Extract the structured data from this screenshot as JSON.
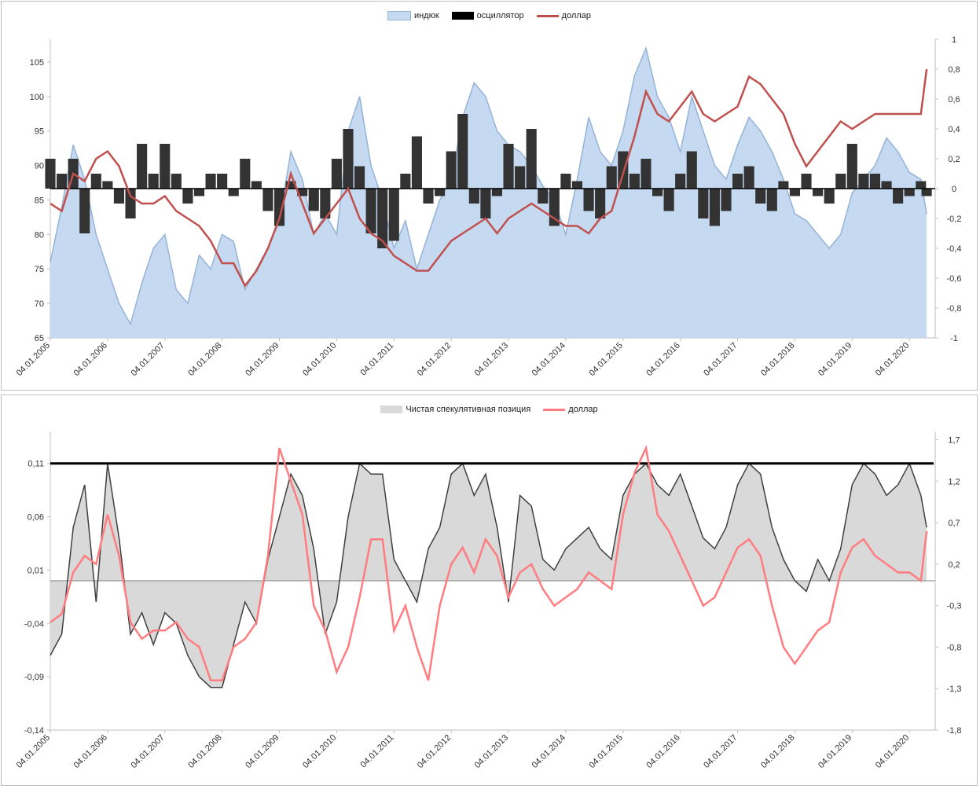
{
  "chart_data": [
    {
      "type": "area",
      "legend": {
        "position": "top",
        "items": [
          "индюк",
          "осциллятор",
          "доллар"
        ]
      },
      "series_names": {
        "index": "индюк",
        "oscillator": "осциллятор",
        "dollar": "доллар"
      },
      "colors": {
        "index_fill": "#c5d9f1",
        "index_line": "#95b3d7",
        "oscillator": "#333333",
        "dollar": "#c0504d",
        "zero_line": "#000000"
      },
      "xlim": [
        2005.0,
        2020.45
      ],
      "x_tick_labels": [
        "04.01.2005",
        "04.01.2006",
        "04.01.2007",
        "04.01.2008",
        "04.01.2009",
        "04.01.2010",
        "04.01.2011",
        "04.01.2012",
        "04.01.2013",
        "04.01.2014",
        "04.01.2015",
        "04.01.2016",
        "04.01.2017",
        "04.01.2018",
        "04.01.2019",
        "04.01.2020"
      ],
      "y_left": {
        "ylim": [
          65,
          108.3
        ],
        "ticks": [
          65,
          70,
          75,
          80,
          85,
          90,
          95,
          100,
          105
        ]
      },
      "y_right": {
        "ylim": [
          -1,
          1
        ],
        "tick_labels": [
          "1",
          "0,8",
          "0,6",
          "0,4",
          "0,2",
          "0",
          "-0,2",
          "-0,4",
          "-0,6",
          "-0,8",
          "-1"
        ]
      },
      "index": {
        "x": [
          2005.0,
          2005.2,
          2005.4,
          2005.6,
          2005.8,
          2006.0,
          2006.2,
          2006.4,
          2006.6,
          2006.8,
          2007.0,
          2007.2,
          2007.4,
          2007.6,
          2007.8,
          2008.0,
          2008.2,
          2008.4,
          2008.6,
          2008.8,
          2009.0,
          2009.2,
          2009.4,
          2009.6,
          2009.8,
          2010.0,
          2010.2,
          2010.4,
          2010.6,
          2010.8,
          2011.0,
          2011.2,
          2011.4,
          2011.6,
          2011.8,
          2012.0,
          2012.2,
          2012.4,
          2012.6,
          2012.8,
          2013.0,
          2013.2,
          2013.4,
          2013.6,
          2013.8,
          2014.0,
          2014.2,
          2014.4,
          2014.6,
          2014.8,
          2015.0,
          2015.2,
          2015.4,
          2015.6,
          2015.8,
          2016.0,
          2016.2,
          2016.4,
          2016.6,
          2016.8,
          2017.0,
          2017.2,
          2017.4,
          2017.6,
          2017.8,
          2018.0,
          2018.2,
          2018.4,
          2018.6,
          2018.8,
          2019.0,
          2019.2,
          2019.4,
          2019.6,
          2019.8,
          2020.0,
          2020.2,
          2020.3
        ],
        "values": [
          76,
          84,
          93,
          88,
          80,
          75,
          70,
          67,
          73,
          78,
          80,
          72,
          70,
          77,
          75,
          80,
          79,
          72,
          75,
          78,
          82,
          92,
          88,
          80,
          83,
          80,
          95,
          100,
          90,
          85,
          78,
          82,
          75,
          80,
          85,
          88,
          97,
          102,
          100,
          95,
          93,
          92,
          90,
          87,
          85,
          80,
          88,
          97,
          92,
          90,
          95,
          103,
          107,
          100,
          97,
          92,
          100,
          95,
          90,
          88,
          93,
          97,
          95,
          92,
          88,
          83,
          82,
          80,
          78,
          80,
          86,
          88,
          90,
          94,
          92,
          89,
          88,
          83
        ]
      },
      "oscillator": {
        "x": [
          2005.0,
          2005.2,
          2005.4,
          2005.6,
          2005.8,
          2006.0,
          2006.2,
          2006.4,
          2006.6,
          2006.8,
          2007.0,
          2007.2,
          2007.4,
          2007.6,
          2007.8,
          2008.0,
          2008.2,
          2008.4,
          2008.6,
          2008.8,
          2009.0,
          2009.2,
          2009.4,
          2009.6,
          2009.8,
          2010.0,
          2010.2,
          2010.4,
          2010.6,
          2010.8,
          2011.0,
          2011.2,
          2011.4,
          2011.6,
          2011.8,
          2012.0,
          2012.2,
          2012.4,
          2012.6,
          2012.8,
          2013.0,
          2013.2,
          2013.4,
          2013.6,
          2013.8,
          2014.0,
          2014.2,
          2014.4,
          2014.6,
          2014.8,
          2015.0,
          2015.2,
          2015.4,
          2015.6,
          2015.8,
          2016.0,
          2016.2,
          2016.4,
          2016.6,
          2016.8,
          2017.0,
          2017.2,
          2017.4,
          2017.6,
          2017.8,
          2018.0,
          2018.2,
          2018.4,
          2018.6,
          2018.8,
          2019.0,
          2019.2,
          2019.4,
          2019.6,
          2019.8,
          2020.0,
          2020.2,
          2020.3
        ],
        "values": [
          0.2,
          0.1,
          0.2,
          -0.3,
          0.1,
          0.05,
          -0.1,
          -0.2,
          0.3,
          0.1,
          0.3,
          0.1,
          -0.1,
          -0.05,
          0.1,
          0.1,
          -0.05,
          0.2,
          0.05,
          -0.15,
          -0.25,
          0.05,
          -0.05,
          -0.15,
          -0.2,
          0.2,
          0.4,
          0.15,
          -0.3,
          -0.4,
          -0.35,
          0.1,
          0.35,
          -0.1,
          -0.05,
          0.25,
          0.5,
          -0.1,
          -0.2,
          -0.05,
          0.3,
          0.15,
          0.4,
          -0.1,
          -0.25,
          0.1,
          0.05,
          -0.15,
          -0.2,
          0.15,
          0.25,
          0.1,
          0.2,
          -0.05,
          -0.15,
          0.1,
          0.25,
          -0.2,
          -0.25,
          -0.15,
          0.1,
          0.15,
          -0.1,
          -0.15,
          0.05,
          -0.05,
          0.1,
          -0.05,
          -0.1,
          0.1,
          0.3,
          0.1,
          0.1,
          0.05,
          -0.1,
          -0.05,
          0.05,
          -0.05
        ]
      },
      "dollar": {
        "x": [
          2005.0,
          2005.2,
          2005.4,
          2005.6,
          2005.8,
          2006.0,
          2006.2,
          2006.4,
          2006.6,
          2006.8,
          2007.0,
          2007.2,
          2007.4,
          2007.6,
          2007.8,
          2008.0,
          2008.2,
          2008.4,
          2008.6,
          2008.8,
          2009.0,
          2009.2,
          2009.4,
          2009.6,
          2009.8,
          2010.0,
          2010.2,
          2010.4,
          2010.6,
          2010.8,
          2011.0,
          2011.2,
          2011.4,
          2011.6,
          2011.8,
          2012.0,
          2012.2,
          2012.4,
          2012.6,
          2012.8,
          2013.0,
          2013.2,
          2013.4,
          2013.6,
          2013.8,
          2014.0,
          2014.2,
          2014.4,
          2014.6,
          2014.8,
          2015.0,
          2015.2,
          2015.4,
          2015.6,
          2015.8,
          2016.0,
          2016.2,
          2016.4,
          2016.6,
          2016.8,
          2017.0,
          2017.2,
          2017.4,
          2017.6,
          2017.8,
          2018.0,
          2018.2,
          2018.4,
          2018.6,
          2018.8,
          2019.0,
          2019.2,
          2019.4,
          2019.6,
          2019.8,
          2020.0,
          2020.2,
          2020.3
        ],
        "values": [
          -0.1,
          -0.15,
          0.1,
          0.05,
          0.2,
          0.25,
          0.15,
          -0.05,
          -0.1,
          -0.1,
          -0.05,
          -0.15,
          -0.2,
          -0.25,
          -0.35,
          -0.5,
          -0.5,
          -0.65,
          -0.55,
          -0.4,
          -0.2,
          0.1,
          -0.1,
          -0.3,
          -0.2,
          -0.1,
          0,
          -0.2,
          -0.3,
          -0.35,
          -0.45,
          -0.5,
          -0.55,
          -0.55,
          -0.45,
          -0.35,
          -0.3,
          -0.25,
          -0.2,
          -0.3,
          -0.2,
          -0.15,
          -0.1,
          -0.15,
          -0.2,
          -0.25,
          -0.25,
          -0.3,
          -0.2,
          -0.15,
          0.1,
          0.35,
          0.65,
          0.5,
          0.45,
          0.55,
          0.65,
          0.5,
          0.45,
          0.5,
          0.55,
          0.75,
          0.7,
          0.6,
          0.5,
          0.3,
          0.15,
          0.25,
          0.35,
          0.45,
          0.4,
          0.45,
          0.5,
          0.5,
          0.5,
          0.5,
          0.5,
          0.8
        ]
      }
    },
    {
      "type": "area",
      "legend": {
        "position": "top",
        "items": [
          "Чистая спекулятивная позиция",
          "доллар"
        ]
      },
      "series_names": {
        "net": "Чистая спекулятивная позиция",
        "dollar": "доллар"
      },
      "colors": {
        "net_fill": "#d9d9d9",
        "net_line": "#3f3f3f",
        "dollar": "#ff7c80",
        "threshold": "#000000",
        "zero_line": "#7f7f7f"
      },
      "xlim": [
        2005.0,
        2020.45
      ],
      "x_tick_labels": [
        "04.01.2005",
        "04.01.2006",
        "04.01.2007",
        "04.01.2008",
        "04.01.2009",
        "04.01.2010",
        "04.01.2011",
        "04.01.2012",
        "04.01.2013",
        "04.01.2014",
        "04.01.2015",
        "04.01.2016",
        "04.01.2017",
        "04.01.2018",
        "04.01.2019",
        "04.01.2020"
      ],
      "y_left": {
        "ylim": [
          -0.14,
          0.14
        ],
        "ticks": [
          -0.14,
          -0.09,
          -0.04,
          0.01,
          0.06,
          0.11
        ],
        "tick_labels": [
          "-0,14",
          "-0,09",
          "-0,04",
          "0,01",
          "0,06",
          "0,11"
        ]
      },
      "y_right": {
        "ylim": [
          -1.8,
          1.8
        ],
        "ticks": [
          -1.8,
          -1.3,
          -0.8,
          -0.3,
          0.2,
          0.7,
          1.2,
          1.7
        ],
        "tick_labels": [
          "-1,8",
          "-1,3",
          "-0,8",
          "-0,3",
          "0,2",
          "0,7",
          "1,2",
          "1,7"
        ]
      },
      "threshold_left": 0.11,
      "net": {
        "x": [
          2005.0,
          2005.2,
          2005.4,
          2005.6,
          2005.8,
          2006.0,
          2006.2,
          2006.4,
          2006.6,
          2006.8,
          2007.0,
          2007.2,
          2007.4,
          2007.6,
          2007.8,
          2008.0,
          2008.2,
          2008.4,
          2008.6,
          2008.8,
          2009.0,
          2009.2,
          2009.4,
          2009.6,
          2009.8,
          2010.0,
          2010.2,
          2010.4,
          2010.6,
          2010.8,
          2011.0,
          2011.2,
          2011.4,
          2011.6,
          2011.8,
          2012.0,
          2012.2,
          2012.4,
          2012.6,
          2012.8,
          2013.0,
          2013.2,
          2013.4,
          2013.6,
          2013.8,
          2014.0,
          2014.2,
          2014.4,
          2014.6,
          2014.8,
          2015.0,
          2015.2,
          2015.4,
          2015.6,
          2015.8,
          2016.0,
          2016.2,
          2016.4,
          2016.6,
          2016.8,
          2017.0,
          2017.2,
          2017.4,
          2017.6,
          2017.8,
          2018.0,
          2018.2,
          2018.4,
          2018.6,
          2018.8,
          2019.0,
          2019.2,
          2019.4,
          2019.6,
          2019.8,
          2020.0,
          2020.2,
          2020.3
        ],
        "values": [
          -0.07,
          -0.05,
          0.05,
          0.09,
          -0.02,
          0.11,
          0.04,
          -0.05,
          -0.03,
          -0.06,
          -0.03,
          -0.04,
          -0.07,
          -0.09,
          -0.1,
          -0.1,
          -0.06,
          -0.02,
          -0.04,
          0.02,
          0.06,
          0.1,
          0.08,
          0.03,
          -0.05,
          -0.02,
          0.06,
          0.11,
          0.1,
          0.1,
          0.02,
          0.0,
          -0.02,
          0.03,
          0.05,
          0.1,
          0.11,
          0.08,
          0.1,
          0.05,
          -0.02,
          0.08,
          0.07,
          0.02,
          0.01,
          0.03,
          0.04,
          0.05,
          0.03,
          0.02,
          0.08,
          0.1,
          0.11,
          0.09,
          0.08,
          0.1,
          0.07,
          0.04,
          0.03,
          0.05,
          0.09,
          0.11,
          0.1,
          0.05,
          0.02,
          0.0,
          -0.01,
          0.02,
          0.0,
          0.03,
          0.09,
          0.11,
          0.1,
          0.08,
          0.09,
          0.11,
          0.08,
          0.05
        ]
      },
      "dollar": {
        "x": [
          2005.0,
          2005.2,
          2005.4,
          2005.6,
          2005.8,
          2006.0,
          2006.2,
          2006.4,
          2006.6,
          2006.8,
          2007.0,
          2007.2,
          2007.4,
          2007.6,
          2007.8,
          2008.0,
          2008.2,
          2008.4,
          2008.6,
          2008.8,
          2009.0,
          2009.2,
          2009.4,
          2009.6,
          2009.8,
          2010.0,
          2010.2,
          2010.4,
          2010.6,
          2010.8,
          2011.0,
          2011.2,
          2011.4,
          2011.6,
          2011.8,
          2012.0,
          2012.2,
          2012.4,
          2012.6,
          2012.8,
          2013.0,
          2013.2,
          2013.4,
          2013.6,
          2013.8,
          2014.0,
          2014.2,
          2014.4,
          2014.6,
          2014.8,
          2015.0,
          2015.2,
          2015.4,
          2015.6,
          2015.8,
          2016.0,
          2016.2,
          2016.4,
          2016.6,
          2016.8,
          2017.0,
          2017.2,
          2017.4,
          2017.6,
          2017.8,
          2018.0,
          2018.2,
          2018.4,
          2018.6,
          2018.8,
          2019.0,
          2019.2,
          2019.4,
          2019.6,
          2019.8,
          2020.0,
          2020.2,
          2020.3
        ],
        "values": [
          -0.5,
          -0.4,
          0.1,
          0.3,
          0.2,
          0.8,
          0.3,
          -0.5,
          -0.7,
          -0.6,
          -0.6,
          -0.5,
          -0.7,
          -0.8,
          -1.2,
          -1.2,
          -0.8,
          -0.7,
          -0.5,
          0.3,
          1.6,
          1.2,
          0.8,
          -0.3,
          -0.6,
          -1.1,
          -0.8,
          -0.2,
          0.5,
          0.5,
          -0.6,
          -0.3,
          -0.8,
          -1.2,
          -0.3,
          0.2,
          0.4,
          0.1,
          0.5,
          0.3,
          -0.2,
          0.1,
          0.2,
          -0.1,
          -0.3,
          -0.2,
          -0.1,
          0.1,
          0.0,
          -0.1,
          0.8,
          1.3,
          1.6,
          0.8,
          0.6,
          0.3,
          0.0,
          -0.3,
          -0.2,
          0.1,
          0.4,
          0.5,
          0.3,
          -0.3,
          -0.8,
          -1.0,
          -0.8,
          -0.6,
          -0.5,
          0.1,
          0.4,
          0.5,
          0.3,
          0.2,
          0.1,
          0.1,
          0.0,
          0.6
        ]
      }
    }
  ]
}
